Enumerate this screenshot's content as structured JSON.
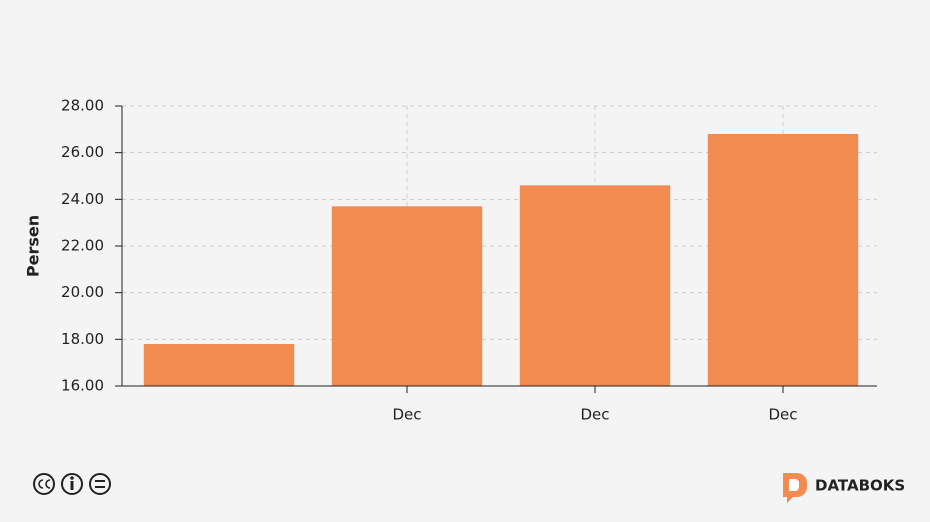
{
  "chart_data": {
    "type": "bar",
    "y_label": "Persen",
    "categories": [
      null,
      "Dec",
      "Dec",
      "Dec"
    ],
    "values": [
      17.8,
      23.7,
      24.6,
      26.8
    ],
    "color": "#f28b50",
    "ylim": [
      16,
      28
    ],
    "yticks": [
      {
        "value": 16,
        "label": "16.00"
      },
      {
        "value": 18,
        "label": "18.00"
      },
      {
        "value": 20,
        "label": "20.00"
      },
      {
        "value": 22,
        "label": "22.00"
      },
      {
        "value": 24,
        "label": "24.00"
      },
      {
        "value": 26,
        "label": "26.00"
      },
      {
        "value": 28,
        "label": "28.00"
      }
    ],
    "grid": true
  },
  "footer": {
    "brand": "DATABOKS"
  }
}
